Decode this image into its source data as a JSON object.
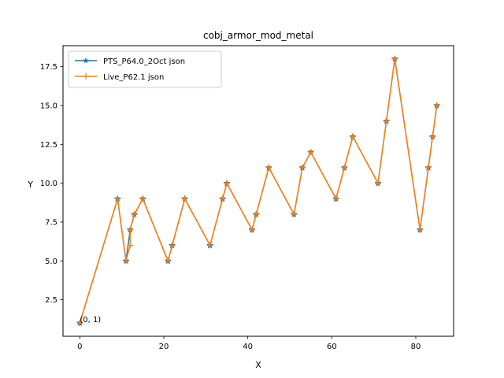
{
  "chart_data": {
    "type": "line",
    "title": "cobj_armor_mod_metal",
    "xlabel": "X",
    "ylabel": "Y",
    "xlim": [
      -4,
      89
    ],
    "ylim": [
      0.15,
      18.85
    ],
    "xticks": [
      0,
      20,
      40,
      60,
      80
    ],
    "yticks": [
      2.5,
      5.0,
      7.5,
      10.0,
      12.5,
      15.0,
      17.5
    ],
    "ytick_labels": [
      "2.5",
      "5.0",
      "7.5",
      "10.0",
      "12.5",
      "15.0",
      "17.5"
    ],
    "xtick_labels": [
      "0",
      "20",
      "40",
      "60",
      "80"
    ],
    "grid": false,
    "legend": "top-left",
    "annotation": {
      "text": "(0, 1)",
      "x": 0,
      "y": 1
    },
    "series": [
      {
        "name": "PTS_P64.0_2Oct json",
        "color": "#1f77b4",
        "marker": "star",
        "x": [
          0,
          9,
          11,
          12,
          13,
          15,
          21,
          22,
          25,
          31,
          34,
          35,
          41,
          42,
          45,
          51,
          53,
          55,
          61,
          63,
          65,
          71,
          73,
          75,
          81,
          83,
          84,
          85
        ],
        "y": [
          1,
          9,
          5,
          7,
          8,
          9,
          5,
          6,
          9,
          6,
          9,
          10,
          7,
          8,
          11,
          8,
          11,
          12,
          9,
          11,
          13,
          10,
          14,
          18,
          7,
          11,
          13,
          15
        ]
      },
      {
        "name": "Live_P62.1 json",
        "color": "#ff7f0e",
        "marker": "plus",
        "x": [
          0,
          9,
          11,
          12,
          12,
          13,
          15,
          21,
          22,
          25,
          31,
          34,
          35,
          41,
          42,
          45,
          51,
          53,
          55,
          61,
          63,
          65,
          71,
          73,
          75,
          81,
          83,
          84,
          85
        ],
        "y": [
          1,
          9,
          5,
          6,
          7,
          8,
          9,
          5,
          6,
          9,
          6,
          9,
          10,
          7,
          8,
          11,
          8,
          11,
          12,
          9,
          11,
          13,
          10,
          14,
          18,
          7,
          11,
          13,
          15
        ]
      }
    ]
  }
}
